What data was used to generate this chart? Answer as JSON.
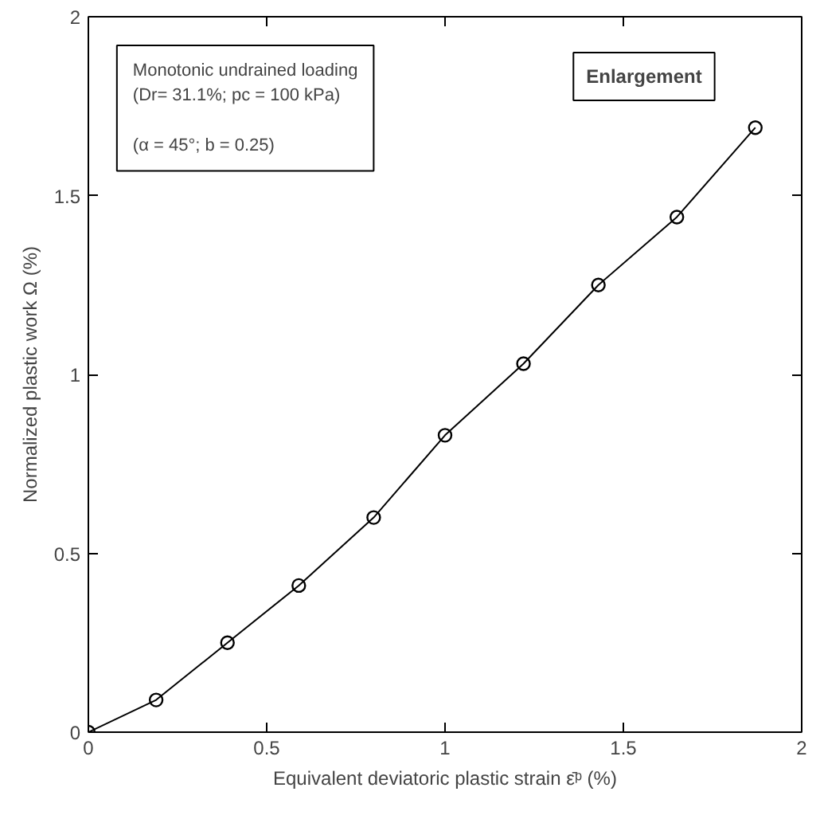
{
  "chart_data": {
    "type": "line",
    "xlabel": "Equivalent deviatoric plastic strain ε̄ᵖ (%)",
    "ylabel": "Normalized plastic work Ω (%)",
    "annotations": [
      "Monotonic undrained loading",
      "(Dr= 31.1%; pc = 100 kPa)",
      "(α = 45°; b = 0.25)",
      "Enlargement"
    ],
    "x": [
      0,
      0.19,
      0.39,
      0.59,
      0.8,
      1.0,
      1.22,
      1.43,
      1.65,
      1.87
    ],
    "series": [
      {
        "color": "#000000",
        "values": [
          0,
          0.09,
          0.25,
          0.41,
          0.6,
          0.83,
          1.03,
          1.25,
          1.44,
          1.69
        ]
      }
    ],
    "xlim": [
      0,
      2
    ],
    "ylim": [
      0,
      2
    ],
    "xticks": [
      0,
      0.5,
      1,
      1.5,
      2
    ],
    "yticks": [
      0,
      0.5,
      1,
      1.5,
      2
    ],
    "marker": "circle",
    "line_style": "solid",
    "grid": false
  }
}
